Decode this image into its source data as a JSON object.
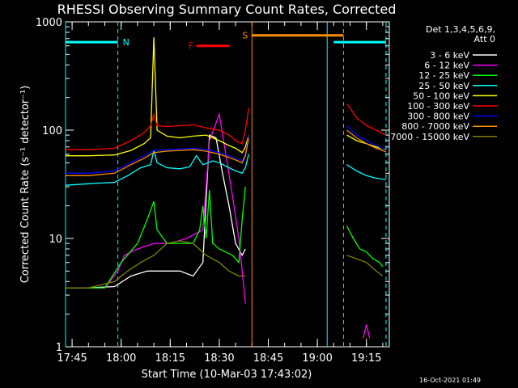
{
  "chart_data": {
    "type": "line",
    "title": "RHESSI Observing Summary Count Rates, Corrected",
    "xlabel": "Start Time (10-Mar-03 17:43:02)",
    "ylabel": "Corrected Count Rate (s⁻¹ detector⁻¹)",
    "y_scale": "log",
    "ylim": [
      1,
      1000
    ],
    "xlim": [
      "17:43",
      "19:22"
    ],
    "x_ticks": [
      "17:45",
      "18:00",
      "18:15",
      "18:30",
      "18:45",
      "19:00",
      "19:15"
    ],
    "y_ticks": [
      "1",
      "10",
      "100",
      "1000"
    ],
    "legend_header": [
      "Det 1,3,4,5,6,9,",
      "Att 0"
    ],
    "legend_placement": "right",
    "footer_timestamp": "16-Oct-2021 01:49",
    "flags": [
      {
        "label": "N",
        "color": "#00ffff",
        "intervals": [
          [
            "17:43",
            "17:59"
          ],
          [
            "19:05",
            "19:21"
          ]
        ],
        "level": 650
      },
      {
        "label": "F",
        "color": "#ff0000",
        "intervals": [
          [
            "18:23",
            "18:33"
          ]
        ],
        "level": 600
      },
      {
        "label": "S",
        "color": "#ff8c00",
        "intervals": [
          [
            "18:40",
            "19:08"
          ]
        ],
        "level": 750
      }
    ],
    "vertical_lines": [
      {
        "time": "17:43",
        "color": "#00ffff",
        "style": "solid"
      },
      {
        "time": "17:59",
        "color": "#00ffff",
        "style": "dashed"
      },
      {
        "time": "18:40",
        "color": "#ff8c00",
        "style": "solid"
      },
      {
        "time": "19:03",
        "color": "#00ffff",
        "style": "solid"
      },
      {
        "time": "19:08",
        "color": "#ff8c00",
        "style": "dashed"
      },
      {
        "time": "19:21",
        "color": "#00ffff",
        "style": "dashed"
      }
    ],
    "series": [
      {
        "name": "3 - 6 keV",
        "color": "#ffffff",
        "segments": [
          {
            "x": [
              "17:43",
              "17:50",
              "17:58",
              "18:03",
              "18:08",
              "18:12",
              "18:18",
              "18:22",
              "18:25",
              "18:27",
              "18:29",
              "18:31",
              "18:33",
              "18:35",
              "18:37",
              "18:38"
            ],
            "y": [
              3.5,
              3.5,
              3.6,
              4.5,
              5,
              5,
              5,
              4.5,
              6,
              90,
              85,
              40,
              20,
              9,
              7,
              8
            ]
          }
        ]
      },
      {
        "name": "6 - 12 keV",
        "color": "#ff00ff",
        "segments": [
          {
            "x": [
              "17:43",
              "17:55",
              "17:59",
              "18:01",
              "18:05",
              "18:10",
              "18:15",
              "18:20",
              "18:25",
              "18:27",
              "18:30",
              "18:32",
              "18:34",
              "18:36",
              "18:37",
              "18:38"
            ],
            "y": [
              3.5,
              3.5,
              5,
              7,
              8,
              9,
              9,
              10,
              12,
              80,
              140,
              60,
              25,
              10,
              5,
              2.5
            ]
          },
          {
            "x": [
              "19:14",
              "19:15",
              "19:16"
            ],
            "y": [
              1.2,
              1.6,
              1.2
            ]
          }
        ]
      },
      {
        "name": "12 - 25 keV",
        "color": "#00ff00",
        "segments": [
          {
            "x": [
              "17:43",
              "17:55",
              "18:00",
              "18:05",
              "18:08",
              "18:10",
              "18:11",
              "18:14",
              "18:18",
              "18:22",
              "18:24",
              "18:25",
              "18:26",
              "18:27",
              "18:28",
              "18:30",
              "18:34",
              "18:36",
              "18:37",
              "18:38"
            ],
            "y": [
              3.5,
              3.5,
              6,
              9,
              15,
              22,
              12,
              9,
              9,
              9,
              12,
              20,
              10,
              28,
              9,
              8,
              7,
              6,
              15,
              30
            ]
          },
          {
            "x": [
              "19:09",
              "19:11",
              "19:13",
              "19:15",
              "19:17",
              "19:19",
              "19:20"
            ],
            "y": [
              13,
              10,
              8,
              7.5,
              6.5,
              6,
              5.5
            ]
          }
        ]
      },
      {
        "name": "25 - 50 keV",
        "color": "#00ffff",
        "segments": [
          {
            "x": [
              "17:43",
              "17:50",
              "17:58",
              "18:02",
              "18:06",
              "18:09",
              "18:10",
              "18:11",
              "18:14",
              "18:18",
              "18:21",
              "18:23",
              "18:25",
              "18:28",
              "18:30",
              "18:33",
              "18:35",
              "18:37",
              "18:38",
              "18:39"
            ],
            "y": [
              31,
              32,
              33,
              38,
              45,
              48,
              65,
              50,
              45,
              44,
              46,
              58,
              48,
              52,
              50,
              45,
              42,
              40,
              45,
              60
            ]
          },
          {
            "x": [
              "19:09",
              "19:12",
              "19:15",
              "19:18",
              "19:21"
            ],
            "y": [
              48,
              42,
              38,
              36,
              35
            ]
          }
        ]
      },
      {
        "name": "50 - 100 keV",
        "color": "#ffff00",
        "segments": [
          {
            "x": [
              "17:43",
              "17:50",
              "17:58",
              "18:03",
              "18:07",
              "18:09",
              "18:10",
              "18:11",
              "18:14",
              "18:18",
              "18:22",
              "18:26",
              "18:30",
              "18:33",
              "18:35",
              "18:37",
              "18:38",
              "18:39"
            ],
            "y": [
              58,
              58,
              59,
              65,
              75,
              85,
              720,
              100,
              88,
              85,
              88,
              90,
              80,
              72,
              68,
              62,
              70,
              90
            ]
          },
          {
            "x": [
              "19:09",
              "19:12",
              "19:15",
              "19:18",
              "19:21"
            ],
            "y": [
              90,
              80,
              75,
              70,
              66
            ]
          }
        ]
      },
      {
        "name": "100 - 300 keV",
        "color": "#ff0000",
        "segments": [
          {
            "x": [
              "17:43",
              "17:50",
              "17:58",
              "18:03",
              "18:07",
              "18:09",
              "18:10",
              "18:11",
              "18:14",
              "18:18",
              "18:22",
              "18:26",
              "18:30",
              "18:33",
              "18:35",
              "18:37",
              "18:38",
              "18:39"
            ],
            "y": [
              66,
              66,
              68,
              80,
              95,
              110,
              140,
              110,
              108,
              110,
              112,
              105,
              100,
              90,
              80,
              75,
              100,
              160
            ]
          },
          {
            "x": [
              "19:09",
              "19:10",
              "19:12",
              "19:15",
              "19:18",
              "19:21"
            ],
            "y": [
              175,
              160,
              130,
              110,
              100,
              90
            ]
          }
        ]
      },
      {
        "name": "300 - 800 keV",
        "color": "#0000ff",
        "segments": [
          {
            "x": [
              "17:43",
              "17:50",
              "17:58",
              "18:03",
              "18:07",
              "18:10",
              "18:14",
              "18:18",
              "18:22",
              "18:26",
              "18:30",
              "18:33",
              "18:35",
              "18:37",
              "18:38",
              "18:39"
            ],
            "y": [
              40,
              40,
              42,
              50,
              58,
              65,
              66,
              67,
              68,
              66,
              62,
              58,
              55,
              52,
              60,
              90
            ]
          },
          {
            "x": [
              "19:09",
              "19:12",
              "19:15",
              "19:18",
              "19:21"
            ],
            "y": [
              110,
              90,
              80,
              72,
              65
            ]
          }
        ]
      },
      {
        "name": "800 - 7000 keV",
        "color": "#ff8c00",
        "segments": [
          {
            "x": [
              "17:43",
              "17:50",
              "17:58",
              "18:03",
              "18:07",
              "18:10",
              "18:14",
              "18:18",
              "18:22",
              "18:26",
              "18:30",
              "18:33",
              "18:35",
              "18:37",
              "18:38",
              "18:39"
            ],
            "y": [
              38,
              38,
              40,
              48,
              55,
              62,
              64,
              65,
              66,
              64,
              60,
              56,
              53,
              50,
              58,
              85
            ]
          },
          {
            "x": [
              "19:09",
              "19:12",
              "19:15",
              "19:18",
              "19:21"
            ],
            "y": [
              100,
              85,
              75,
              68,
              63
            ]
          }
        ]
      },
      {
        "name": "7000 - 15000 keV",
        "color": "#808000",
        "segments": [
          {
            "x": [
              "17:43",
              "17:50",
              "17:58",
              "18:02",
              "18:06",
              "18:10",
              "18:14",
              "18:18",
              "18:22",
              "18:26",
              "18:30",
              "18:33",
              "18:36",
              "18:38"
            ],
            "y": [
              3.5,
              3.5,
              4,
              5,
              6,
              7,
              9,
              9.5,
              9,
              7,
              6,
              5,
              4.5,
              4.5
            ]
          },
          {
            "x": [
              "19:09",
              "19:12",
              "19:15",
              "19:18",
              "19:20"
            ],
            "y": [
              7,
              6.5,
              6,
              5,
              4.5
            ]
          }
        ]
      }
    ]
  }
}
